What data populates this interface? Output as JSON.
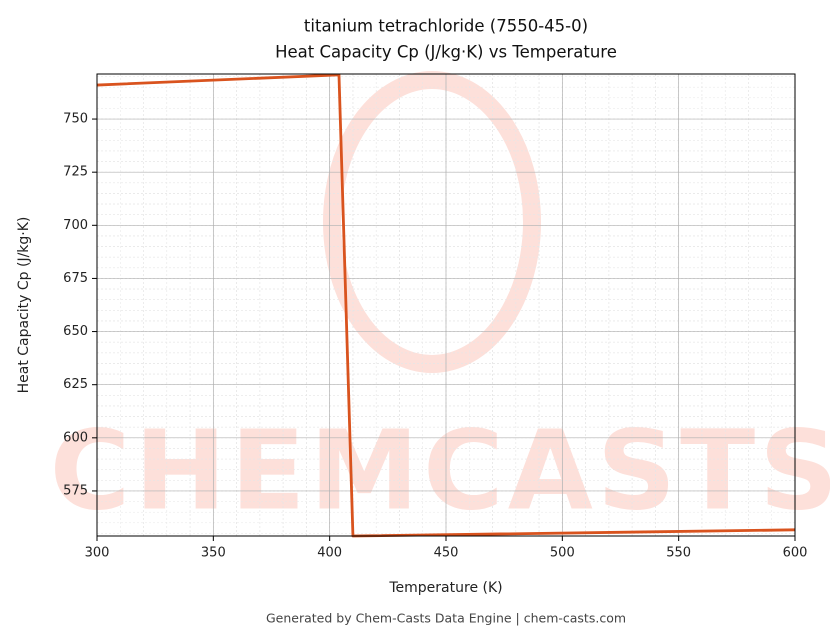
{
  "chart_data": {
    "type": "line",
    "title": "titanium tetrachloride (7550-45-0)",
    "subtitle": "Heat Capacity Cp (J/kg·K) vs Temperature",
    "x_label": "Temperature (K)",
    "y_label": "Heat Capacity Cp (J/kg·K)",
    "footer": "Generated by Chem-Casts Data Engine | chem-casts.com",
    "watermark": "CHEMCASTS",
    "x": [
      300,
      404,
      410,
      600
    ],
    "series": [
      {
        "name": "Heat Capacity Cp",
        "color": "#d9531e",
        "values": [
          766,
          770.8,
          553.8,
          556.7
        ]
      }
    ],
    "xlim": [
      300,
      600
    ],
    "xticks": [
      300,
      350,
      400,
      450,
      500,
      550,
      600
    ],
    "ylim": [
      553.8,
      771.2
    ],
    "yticks": [
      575,
      600,
      625,
      650,
      675,
      700,
      725,
      750
    ],
    "grid": true
  }
}
